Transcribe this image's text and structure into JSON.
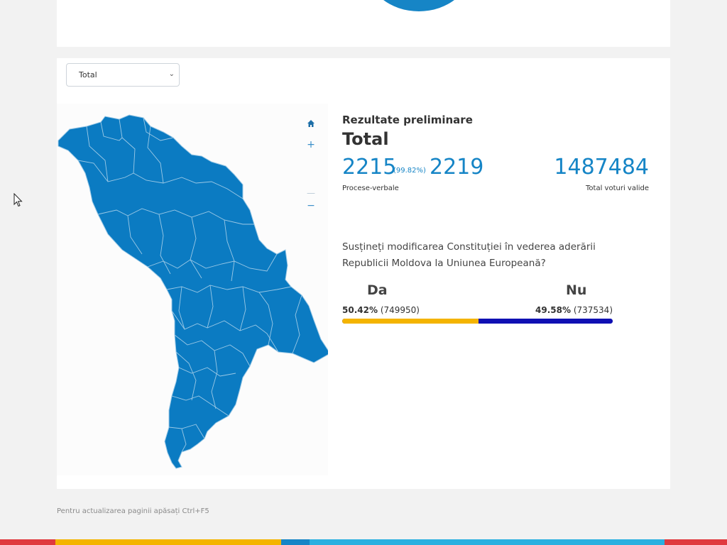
{
  "region_select": {
    "value": "Total",
    "chevron_icon": "chevron-down-icon"
  },
  "map": {
    "controls": {
      "home_icon": "home-icon",
      "zoom_in_label": "+",
      "zoom_out_label": "−"
    },
    "fill_color": "#0b7bc2",
    "border_color": "#9cc9e6"
  },
  "results": {
    "heading": "Rezultate preliminare",
    "title": "Total",
    "counted": "2215",
    "counted_pct": "(99.82%)",
    "total": "2219",
    "valid_votes": "1487484",
    "pv_label": "Procese-verbale",
    "valid_label": "Total voturi valide",
    "accent_color": "#1685c6"
  },
  "question": "Susțineți modificarea Constituției în vederea aderării Republicii Moldova la Uniunea Europeană?",
  "options": {
    "yes": {
      "label": "Da",
      "pct": "50.42%",
      "votes": "(749950)",
      "share": 50.42,
      "color": "#f4b400"
    },
    "no": {
      "label": "Nu",
      "pct": "49.58%",
      "votes": "(737534)",
      "share": 49.58,
      "color": "#0f10b3"
    }
  },
  "footer": {
    "note": "Pentru actualizarea paginii apăsați Ctrl+F5"
  },
  "stripe_colors": [
    "#e0393e",
    "#f4b400",
    "#1685c6",
    "#2ab0e0",
    "#e0393e"
  ]
}
